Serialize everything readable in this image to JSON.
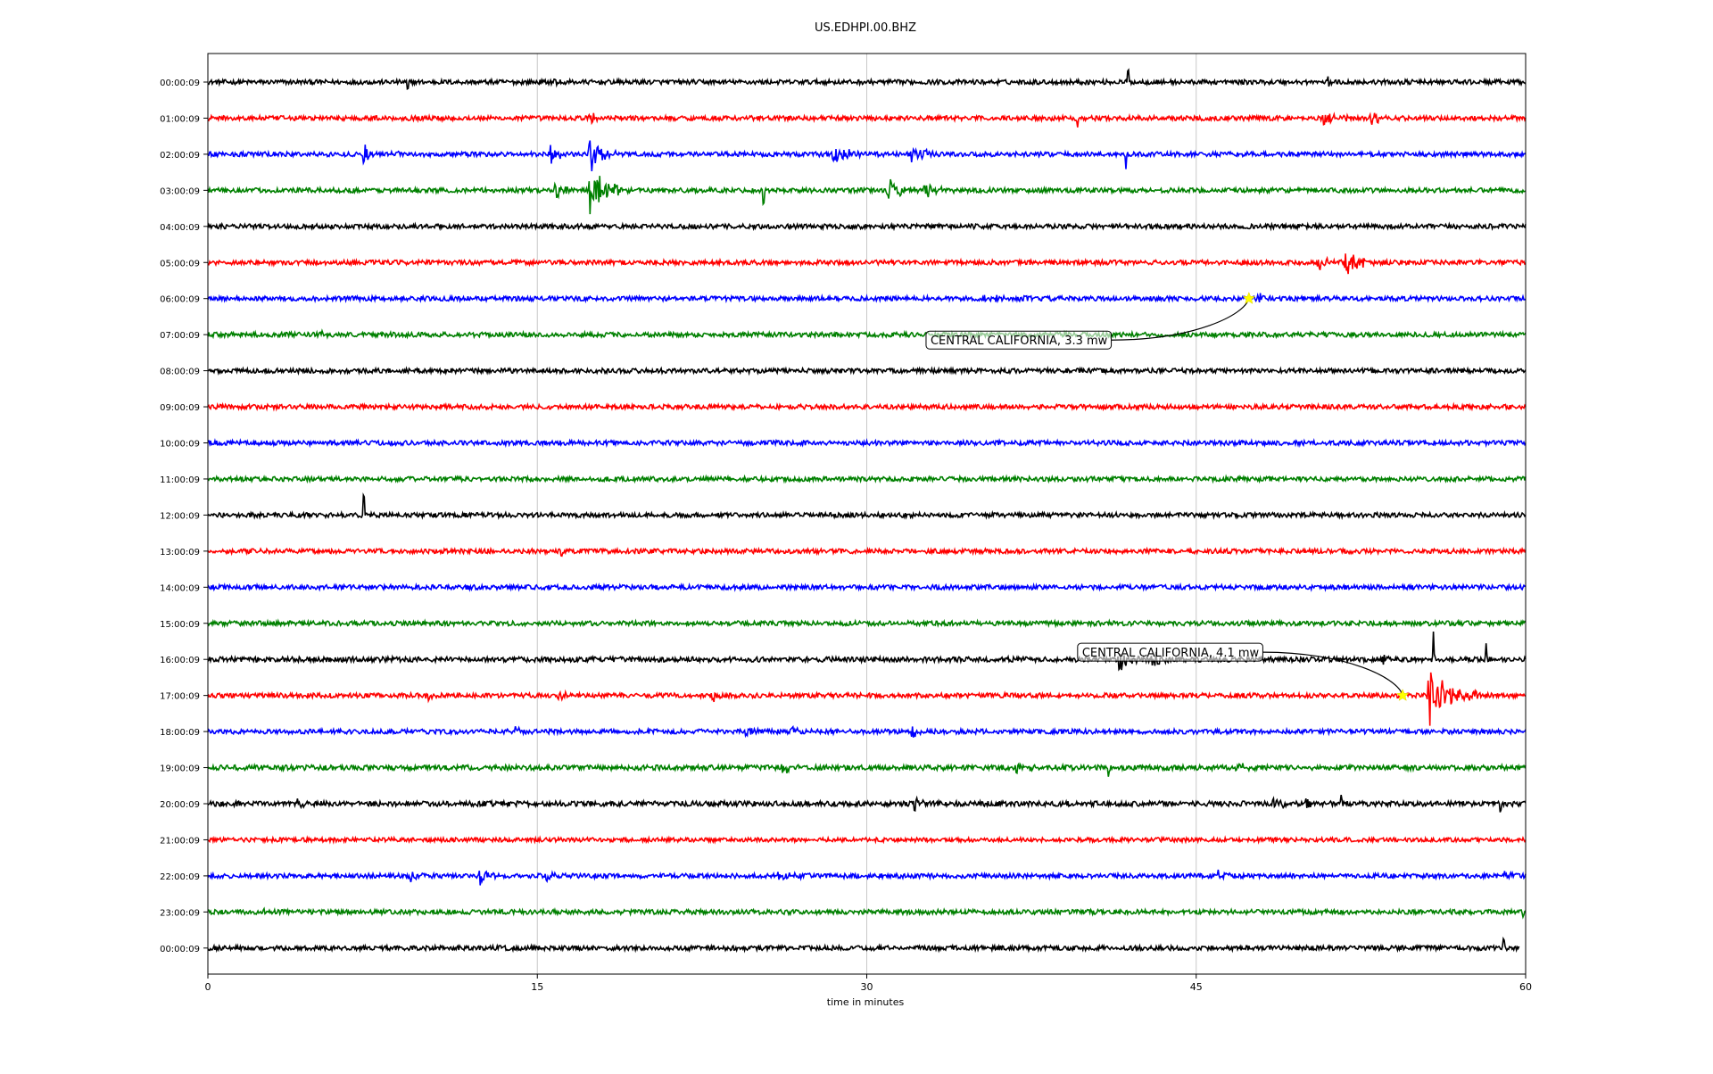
{
  "chart_data": {
    "type": "line",
    "title": "US.EDHPI.00.BHZ",
    "xlabel": "time in minutes",
    "ylabel": "",
    "xlim": [
      0,
      60
    ],
    "x_ticks": [
      0,
      15,
      30,
      45,
      60
    ],
    "grid": "vertical lines at x ticks",
    "legend": "none",
    "colors": [
      "#000000",
      "#ff0000",
      "#0000ff",
      "#008000"
    ],
    "row_labels": [
      "00:00:09",
      "01:00:09",
      "02:00:09",
      "03:00:09",
      "04:00:09",
      "05:00:09",
      "06:00:09",
      "07:00:09",
      "08:00:09",
      "09:00:09",
      "10:00:09",
      "11:00:09",
      "12:00:09",
      "13:00:09",
      "14:00:09",
      "15:00:09",
      "16:00:09",
      "17:00:09",
      "18:00:09",
      "19:00:09",
      "20:00:09",
      "21:00:09",
      "22:00:09",
      "23:00:09",
      "00:00:09"
    ],
    "noise_amplitude": [
      1.0,
      1.0,
      1.0,
      1.0,
      1.0,
      1.0,
      1.0,
      1.0,
      1.0,
      1.0,
      1.0,
      1.0,
      1.0,
      1.0,
      1.0,
      1.0,
      1.1,
      1.0,
      1.0,
      1.1,
      1.1,
      0.9,
      1.0,
      1.0,
      1.0
    ],
    "events": [
      {
        "row": 0,
        "t": 9.1,
        "amp": -14,
        "dur": 0.03
      },
      {
        "row": 0,
        "t": 15.8,
        "amp": 6,
        "dur": 0.3
      },
      {
        "row": 0,
        "t": 41.9,
        "amp": 20,
        "dur": 0.04
      },
      {
        "row": 0,
        "t": 51.0,
        "amp": -6,
        "dur": 0.3
      },
      {
        "row": 1,
        "t": 17.4,
        "amp": 10,
        "dur": 0.4
      },
      {
        "row": 1,
        "t": 39.6,
        "amp": -8,
        "dur": 0.05
      },
      {
        "row": 1,
        "t": 50.8,
        "amp": 9,
        "dur": 1.3
      },
      {
        "row": 1,
        "t": 53.0,
        "amp": -12,
        "dur": 0.5
      },
      {
        "row": 2,
        "t": 7.1,
        "amp": 12,
        "dur": 0.5
      },
      {
        "row": 2,
        "t": 8.4,
        "amp": 8,
        "dur": 0.4
      },
      {
        "row": 2,
        "t": 15.6,
        "amp": 12,
        "dur": 0.6
      },
      {
        "row": 2,
        "t": 17.4,
        "amp": 24,
        "dur": 0.9
      },
      {
        "row": 2,
        "t": 28.5,
        "amp": 13,
        "dur": 1.2
      },
      {
        "row": 2,
        "t": 32.0,
        "amp": 11,
        "dur": 1.0
      },
      {
        "row": 2,
        "t": 41.8,
        "amp": -18,
        "dur": 0.05
      },
      {
        "row": 3,
        "t": 15.8,
        "amp": 12,
        "dur": 0.9
      },
      {
        "row": 3,
        "t": 17.4,
        "amp": 28,
        "dur": 1.4
      },
      {
        "row": 3,
        "t": 25.3,
        "amp": -22,
        "dur": 0.05
      },
      {
        "row": 3,
        "t": 31.0,
        "amp": 12,
        "dur": 1.2
      },
      {
        "row": 3,
        "t": 32.6,
        "amp": 10,
        "dur": 1.1
      },
      {
        "row": 5,
        "t": 50.6,
        "amp": 9,
        "dur": 1.0
      },
      {
        "row": 5,
        "t": 51.8,
        "amp": 14,
        "dur": 1.2
      },
      {
        "row": 6,
        "t": 47.8,
        "amp": 10,
        "dur": 0.6
      },
      {
        "row": 6,
        "t": 35.0,
        "amp": 4,
        "dur": 3.0
      },
      {
        "row": 7,
        "t": 5.2,
        "amp": 5,
        "dur": 0.3
      },
      {
        "row": 12,
        "t": 7.1,
        "amp": 36,
        "dur": 0.03
      },
      {
        "row": 13,
        "t": 16.1,
        "amp": -8,
        "dur": 0.05
      },
      {
        "row": 16,
        "t": 41.5,
        "amp": -14,
        "dur": 1.1
      },
      {
        "row": 16,
        "t": 43.0,
        "amp": -10,
        "dur": 1.0
      },
      {
        "row": 16,
        "t": 53.5,
        "amp": -12,
        "dur": 0.3
      },
      {
        "row": 16,
        "t": 55.8,
        "amp": 30,
        "dur": 0.05
      },
      {
        "row": 16,
        "t": 58.2,
        "amp": 20,
        "dur": 0.05
      },
      {
        "row": 17,
        "t": 10.0,
        "amp": 6,
        "dur": 0.3
      },
      {
        "row": 17,
        "t": 16.0,
        "amp": 8,
        "dur": 0.5
      },
      {
        "row": 17,
        "t": 23.0,
        "amp": 7,
        "dur": 0.4
      },
      {
        "row": 17,
        "t": 55.6,
        "amp": 40,
        "dur": 1.6
      },
      {
        "row": 18,
        "t": 14.0,
        "amp": 7,
        "dur": 0.4
      },
      {
        "row": 18,
        "t": 24.5,
        "amp": 12,
        "dur": 0.4
      },
      {
        "row": 18,
        "t": 26.5,
        "amp": 7,
        "dur": 0.5
      },
      {
        "row": 18,
        "t": 32.1,
        "amp": 12,
        "dur": 0.4
      },
      {
        "row": 19,
        "t": 26.1,
        "amp": 7,
        "dur": 1.3
      },
      {
        "row": 19,
        "t": 36.8,
        "amp": 7,
        "dur": 1.3
      },
      {
        "row": 19,
        "t": 46.8,
        "amp": 6,
        "dur": 0.8
      },
      {
        "row": 19,
        "t": 41.0,
        "amp": -8,
        "dur": 0.05
      },
      {
        "row": 20,
        "t": 4.1,
        "amp": 7,
        "dur": 0.4
      },
      {
        "row": 20,
        "t": 32.2,
        "amp": -12,
        "dur": 0.4
      },
      {
        "row": 20,
        "t": 48.5,
        "amp": 8,
        "dur": 0.6
      },
      {
        "row": 20,
        "t": 50.0,
        "amp": 8,
        "dur": 0.3
      },
      {
        "row": 20,
        "t": 51.6,
        "amp": 10,
        "dur": 0.05
      },
      {
        "row": 20,
        "t": 58.8,
        "amp": -10,
        "dur": 0.3
      },
      {
        "row": 22,
        "t": 9.2,
        "amp": -10,
        "dur": 0.4
      },
      {
        "row": 22,
        "t": 12.4,
        "amp": 10,
        "dur": 0.5
      },
      {
        "row": 22,
        "t": 15.4,
        "amp": 8,
        "dur": 0.5
      },
      {
        "row": 22,
        "t": 26.0,
        "amp": 6,
        "dur": 1.0
      },
      {
        "row": 22,
        "t": 46.0,
        "amp": 8,
        "dur": 0.4
      },
      {
        "row": 22,
        "t": 59.0,
        "amp": 8,
        "dur": 0.4
      },
      {
        "row": 23,
        "t": 2.4,
        "amp": 12,
        "dur": 0.4
      },
      {
        "row": 23,
        "t": 59.9,
        "amp": -8,
        "dur": 0.05
      },
      {
        "row": 24,
        "t": 59.0,
        "amp": 12,
        "dur": 0.05
      }
    ],
    "annotations": [
      {
        "text": "CENTRAL CALIFORNIA, 3.3 mw",
        "row": 6,
        "t": 47.4,
        "label_t": 32.7,
        "label_row": 7.15
      },
      {
        "text": "CENTRAL CALIFORNIA, 4.1 mw",
        "row": 17,
        "t": 54.4,
        "label_t": 39.6,
        "label_row": 15.8
      }
    ]
  }
}
